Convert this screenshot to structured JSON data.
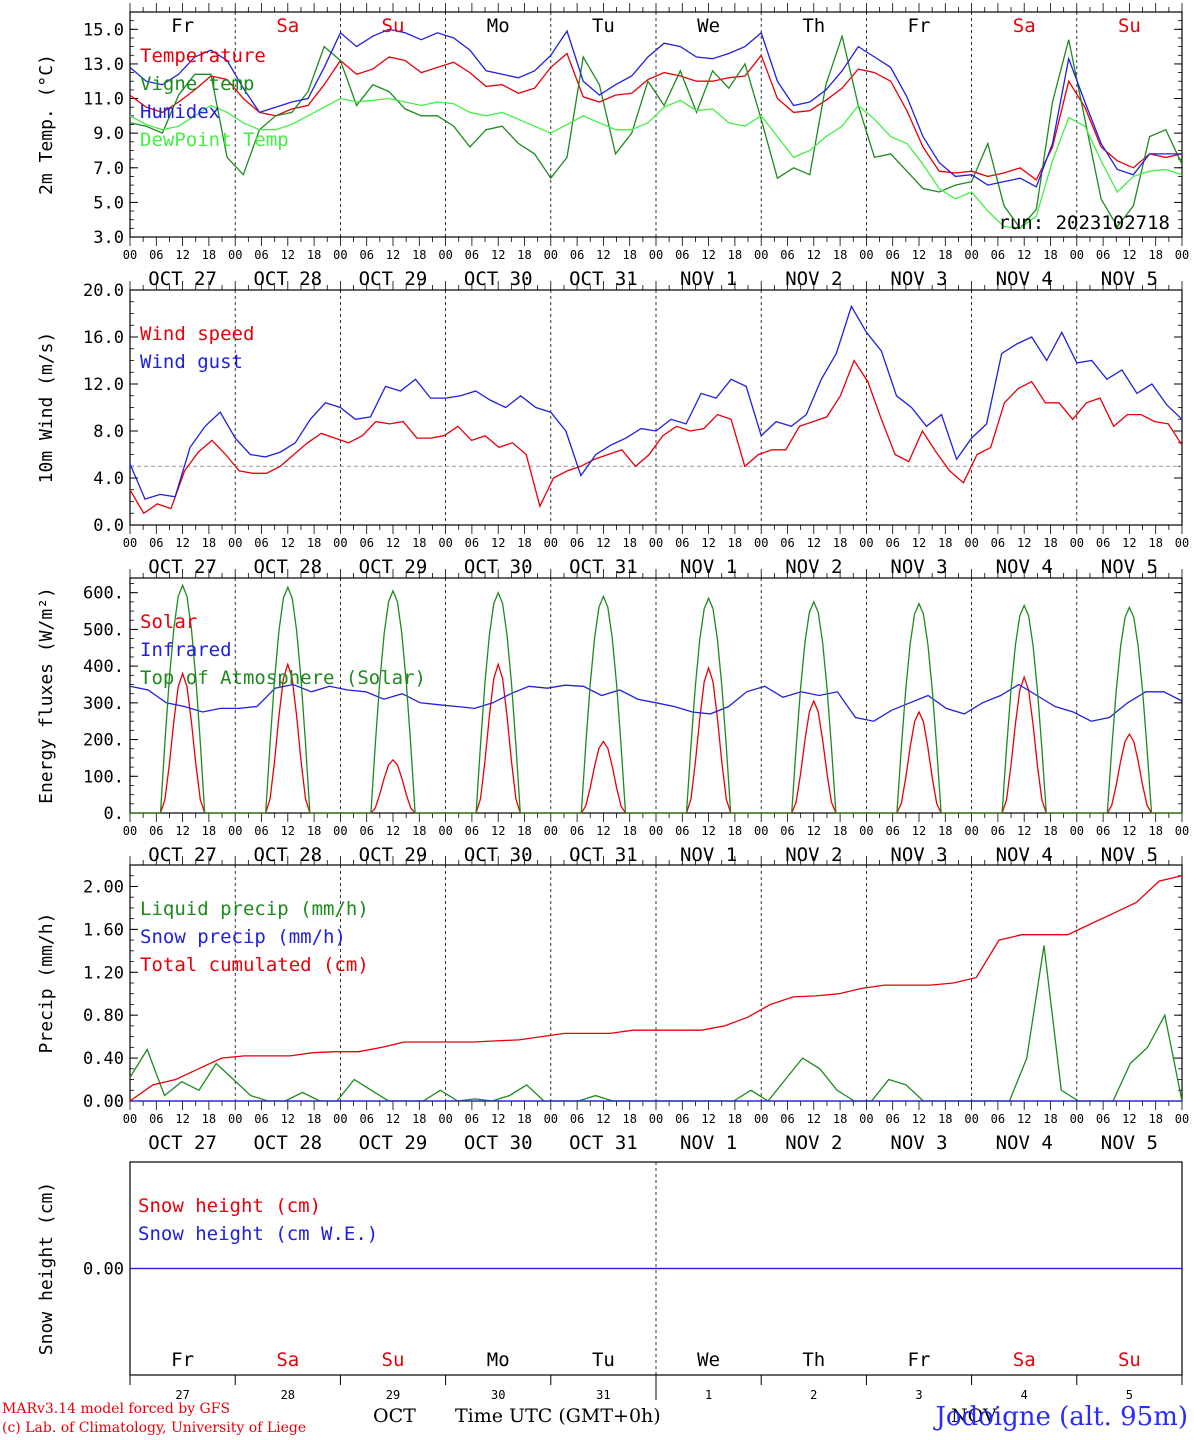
{
  "chart_data": [
    {
      "type": "line",
      "ylabel": "2m Temp. (°C)",
      "ylim": [
        3.0,
        16.0
      ],
      "yticks": [
        "3.0",
        "5.0",
        "7.0",
        "9.0",
        "11.0",
        "13.0",
        "15.0"
      ],
      "annotation": "run: 2023102718",
      "day_labels": [
        "Fr",
        "Sa",
        "Su",
        "Mo",
        "Tu",
        "We",
        "Th",
        "Fr",
        "Sa",
        "Su"
      ],
      "series": [
        {
          "name": "Temperature",
          "color": "#e8000b",
          "values": [
            11.2,
            10.5,
            10.2,
            10.8,
            11.5,
            12.3,
            12.1,
            11.0,
            10.2,
            10.0,
            10.4,
            10.6,
            11.8,
            13.2,
            12.4,
            12.7,
            13.4,
            13.2,
            12.5,
            12.8,
            13.1,
            12.5,
            11.7,
            11.8,
            11.3,
            11.6,
            12.8,
            13.6,
            11.1,
            10.8,
            11.2,
            11.3,
            12.1,
            12.5,
            12.3,
            12.0,
            12.0,
            12.2,
            12.3,
            13.5,
            11.0,
            10.2,
            10.3,
            10.9,
            11.6,
            12.7,
            12.5,
            12.0,
            10.3,
            8.2,
            6.8,
            6.7,
            6.8,
            6.5,
            6.7,
            7.0,
            6.3,
            8.2,
            12.0,
            10.5,
            8.2,
            7.4,
            7.0,
            7.8,
            7.6,
            7.8
          ]
        },
        {
          "name": "Vigne temp",
          "color": "#1e8a1e",
          "values": [
            9.6,
            9.4,
            9.0,
            11.2,
            12.4,
            12.4,
            7.6,
            6.6,
            9.2,
            10.0,
            10.2,
            11.4,
            14.0,
            13.2,
            10.6,
            11.8,
            11.4,
            10.4,
            10.0,
            10.0,
            9.4,
            8.2,
            9.2,
            9.4,
            8.4,
            7.8,
            6.4,
            7.6,
            13.4,
            11.8,
            7.8,
            9.0,
            12.0,
            10.6,
            12.6,
            10.2,
            12.6,
            11.6,
            13.0,
            9.8,
            6.4,
            7.0,
            6.6,
            11.8,
            14.6,
            10.6,
            7.6,
            7.8,
            6.8,
            5.8,
            5.6,
            6.0,
            6.2,
            8.4,
            4.8,
            3.5,
            4.6,
            10.8,
            14.4,
            9.8,
            5.2,
            3.6,
            4.8,
            8.8,
            9.2,
            7.2
          ]
        },
        {
          "name": "Humidex",
          "color": "#2020e0",
          "values": [
            12.8,
            12.0,
            11.8,
            12.4,
            13.4,
            13.8,
            13.2,
            11.6,
            10.2,
            10.5,
            10.8,
            11.0,
            12.8,
            14.8,
            14.0,
            14.6,
            15.0,
            14.8,
            14.4,
            14.8,
            14.5,
            13.8,
            12.6,
            12.4,
            12.2,
            12.6,
            13.5,
            14.9,
            12.0,
            11.2,
            11.8,
            12.3,
            13.4,
            14.2,
            14.0,
            13.4,
            13.3,
            13.6,
            14.0,
            14.8,
            12.0,
            10.6,
            10.8,
            11.5,
            12.6,
            14.0,
            13.4,
            12.8,
            11.1,
            8.8,
            7.3,
            6.5,
            6.6,
            6.0,
            6.2,
            6.4,
            5.9,
            8.4,
            13.3,
            10.8,
            8.4,
            6.9,
            6.6,
            7.8,
            7.8,
            7.8
          ]
        },
        {
          "name": "DewPoint Temp",
          "color": "#44ee44",
          "values": [
            10.0,
            9.5,
            9.2,
            9.4,
            10.0,
            10.6,
            10.2,
            9.6,
            9.2,
            9.2,
            9.5,
            10.0,
            10.5,
            11.0,
            10.8,
            10.9,
            11.0,
            10.8,
            10.6,
            10.8,
            10.7,
            10.2,
            10.0,
            10.2,
            9.8,
            9.4,
            9.0,
            9.5,
            10.0,
            9.6,
            9.2,
            9.2,
            9.6,
            10.5,
            10.9,
            10.3,
            10.4,
            9.6,
            9.4,
            10.0,
            8.8,
            7.6,
            8.0,
            8.8,
            9.4,
            10.6,
            9.8,
            8.8,
            8.4,
            7.2,
            5.8,
            5.2,
            5.6,
            4.5,
            3.6,
            3.5,
            4.2,
            7.4,
            9.9,
            9.4,
            7.4,
            5.6,
            6.5,
            6.8,
            6.9,
            6.6
          ]
        }
      ]
    },
    {
      "type": "line",
      "ylabel": "10m Wind (m/s)",
      "ylim": [
        0.0,
        20.0
      ],
      "yticks": [
        "0.0",
        "4.0",
        "8.0",
        "12.0",
        "16.0",
        "20.0"
      ],
      "reference_line": 5.0,
      "series": [
        {
          "name": "Wind speed",
          "color": "#e8000b",
          "values": [
            3.0,
            1.0,
            1.8,
            1.4,
            4.6,
            6.2,
            7.2,
            6.0,
            4.6,
            4.4,
            4.4,
            5.0,
            6.0,
            7.0,
            7.8,
            7.4,
            7.0,
            7.6,
            8.8,
            8.6,
            8.8,
            7.4,
            7.4,
            7.6,
            8.4,
            7.2,
            7.6,
            6.6,
            7.0,
            6.0,
            1.6,
            4.0,
            4.6,
            5.0,
            5.6,
            6.0,
            6.4,
            5.0,
            6.0,
            7.6,
            8.4,
            8.0,
            8.2,
            9.4,
            9.0,
            5.0,
            6.0,
            6.4,
            6.4,
            8.4,
            8.8,
            9.2,
            11.0,
            14.0,
            12.2,
            9.0,
            6.0,
            5.4,
            8.0,
            6.2,
            4.6,
            3.6,
            6.0,
            6.6,
            10.4,
            11.6,
            12.2,
            10.4,
            10.4,
            9.0,
            10.4,
            10.8,
            8.4,
            9.4,
            9.4,
            8.8,
            8.6,
            6.8
          ]
        },
        {
          "name": "Wind gust",
          "color": "#2020e0",
          "values": [
            5.2,
            2.2,
            2.6,
            2.4,
            6.6,
            8.4,
            9.6,
            7.4,
            6.0,
            5.8,
            6.2,
            7.0,
            9.0,
            10.4,
            10.0,
            9.0,
            9.2,
            11.8,
            11.4,
            12.4,
            10.8,
            10.8,
            11.0,
            11.4,
            10.6,
            10.0,
            11.0,
            10.0,
            9.6,
            8.0,
            4.2,
            6.0,
            6.8,
            7.4,
            8.2,
            8.0,
            9.0,
            8.6,
            11.2,
            10.8,
            12.4,
            11.8,
            7.6,
            8.8,
            8.4,
            9.4,
            12.4,
            14.6,
            18.6,
            16.4,
            14.8,
            11.0,
            10.0,
            8.4,
            9.4,
            5.6,
            7.4,
            8.6,
            14.6,
            15.4,
            16.0,
            14.0,
            16.4,
            13.8,
            14.0,
            12.4,
            13.2,
            11.2,
            12.0,
            10.2,
            9.0
          ]
        }
      ]
    },
    {
      "type": "line",
      "ylabel": "Energy fluxes (W/m²)",
      "ylim": [
        0,
        640
      ],
      "yticks": [
        "0.",
        "100.",
        "200.",
        "300.",
        "400.",
        "500.",
        "600."
      ],
      "series": [
        {
          "name": "Solar",
          "color": "#e8000b",
          "daily_peaks": [
            380,
            405,
            145,
            405,
            195,
            395,
            305,
            275,
            370,
            215
          ]
        },
        {
          "name": "Infrared",
          "color": "#2020e0",
          "values": [
            345,
            335,
            300,
            290,
            275,
            285,
            285,
            290,
            340,
            350,
            330,
            345,
            335,
            330,
            310,
            325,
            300,
            295,
            290,
            285,
            300,
            325,
            345,
            340,
            348,
            345,
            320,
            335,
            310,
            300,
            290,
            275,
            270,
            290,
            330,
            345,
            315,
            330,
            320,
            330,
            260,
            250,
            280,
            300,
            320,
            285,
            270,
            300,
            320,
            350,
            320,
            290,
            275,
            250,
            260,
            300,
            330,
            330,
            305
          ]
        },
        {
          "name": "Top of Atmosphere (Solar)",
          "color": "#1e8a1e",
          "daily_peaks": [
            620,
            615,
            605,
            600,
            590,
            585,
            575,
            570,
            565,
            560
          ]
        }
      ]
    },
    {
      "type": "line",
      "ylabel": "Precip (mm/h)",
      "ylim": [
        0.0,
        2.2
      ],
      "yticks": [
        "0.00",
        "0.40",
        "0.80",
        "1.20",
        "1.60",
        "2.00"
      ],
      "series": [
        {
          "name": "Liquid precip (mm/h)",
          "color": "#1e8a1e",
          "values": [
            0.22,
            0.48,
            0.05,
            0.18,
            0.1,
            0.35,
            0.2,
            0.05,
            0.0,
            0.0,
            0.08,
            0.0,
            0.0,
            0.2,
            0.1,
            0.0,
            0.0,
            0.0,
            0.1,
            0.0,
            0.02,
            0.0,
            0.05,
            0.15,
            0.0,
            0.0,
            0.0,
            0.05,
            0.0,
            0.0,
            0.0,
            0.0,
            0.0,
            0.0,
            0.0,
            0.0,
            0.1,
            0.0,
            0.2,
            0.4,
            0.3,
            0.1,
            0.0,
            0.0,
            0.2,
            0.15,
            0.0,
            0.0,
            0.0,
            0.0,
            0.0,
            0.0,
            0.4,
            1.45,
            0.1,
            0.0,
            0.0,
            0.0,
            0.35,
            0.5,
            0.8,
            0.0
          ]
        },
        {
          "name": "Snow precip (mm/h)",
          "color": "#2020e0",
          "values": [
            0,
            0,
            0,
            0,
            0,
            0,
            0,
            0,
            0,
            0,
            0,
            0,
            0,
            0,
            0,
            0,
            0,
            0,
            0,
            0,
            0,
            0,
            0,
            0,
            0,
            0,
            0,
            0,
            0,
            0,
            0,
            0,
            0,
            0,
            0,
            0,
            0,
            0,
            0,
            0,
            0,
            0
          ]
        },
        {
          "name": "Total cumulated (cm)",
          "color": "#e8000b",
          "values": [
            0.0,
            0.15,
            0.2,
            0.3,
            0.4,
            0.42,
            0.42,
            0.42,
            0.45,
            0.46,
            0.46,
            0.5,
            0.55,
            0.55,
            0.55,
            0.55,
            0.56,
            0.57,
            0.6,
            0.63,
            0.63,
            0.63,
            0.66,
            0.66,
            0.66,
            0.66,
            0.7,
            0.78,
            0.9,
            0.97,
            0.98,
            1.0,
            1.05,
            1.08,
            1.08,
            1.08,
            1.1,
            1.15,
            1.5,
            1.55,
            1.55,
            1.55,
            1.65,
            1.75,
            1.85,
            2.05,
            2.1
          ]
        }
      ]
    },
    {
      "type": "line",
      "ylabel": "Snow height (cm)",
      "ylim": [
        -1.0,
        1.0
      ],
      "yticks": [
        "0.00"
      ],
      "series": [
        {
          "name": "Snow height (cm)",
          "color": "#e8000b",
          "values": [
            0,
            0
          ]
        },
        {
          "name": "Snow height (cm W.E.)",
          "color": "#2020e0",
          "values": [
            0,
            0
          ]
        }
      ],
      "day_labels": [
        "Fr",
        "Sa",
        "Su",
        "Mo",
        "Tu",
        "We",
        "Th",
        "Fr",
        "Sa",
        "Su"
      ],
      "day_numbers": [
        "27",
        "28",
        "29",
        "30",
        "31",
        "1",
        "2",
        "3",
        "4",
        "5"
      ],
      "month_labels": [
        "OCT",
        "NOV"
      ],
      "xlabel": "Time UTC (GMT+0h)"
    }
  ],
  "x_axis": {
    "hour_ticks": [
      "00",
      "06",
      "12",
      "18"
    ],
    "final_tick": "00",
    "date_labels": [
      "OCT 27",
      "OCT 28",
      "OCT 29",
      "OCT 30",
      "OCT 31",
      "NOV 1",
      "NOV 2",
      "NOV 3",
      "NOV 4",
      "NOV 5"
    ],
    "weekend_color": "#e8000b",
    "weekday_color": "#000000",
    "weekend_days": [
      1,
      2,
      8,
      9
    ]
  },
  "footer": {
    "credit_line1": "MARv3.14 model forced by GFS",
    "credit_line2": "(c) Lab. of Climatology, University of Liege",
    "location": "Jodoigne (alt. 95m)"
  }
}
